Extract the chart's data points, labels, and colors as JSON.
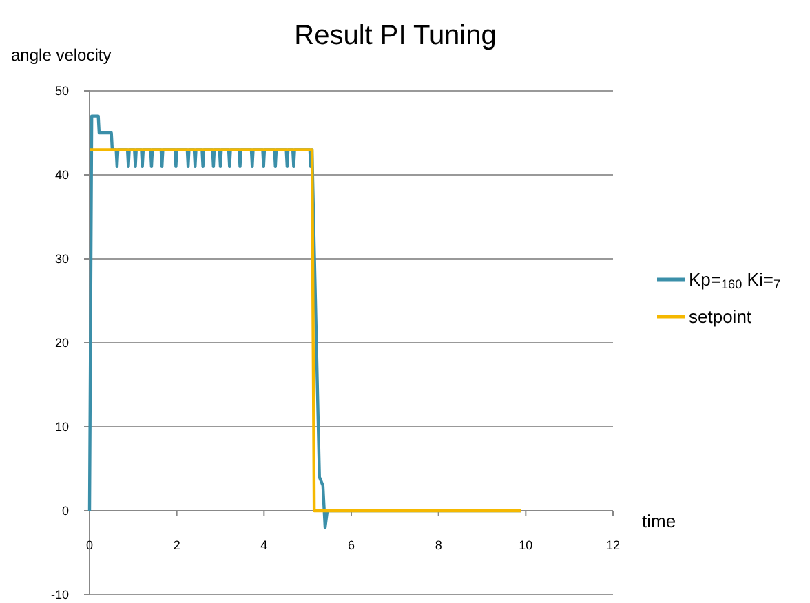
{
  "chart_data": {
    "type": "line",
    "title": "Result PI Tuning",
    "xlabel": "time",
    "ylabel": "angle velocity",
    "xlim": [
      0,
      12
    ],
    "xticks": [
      0,
      2,
      4,
      6,
      8,
      10,
      12
    ],
    "ylim": [
      -10,
      50
    ],
    "yticks": [
      -10,
      0,
      10,
      20,
      30,
      40,
      50
    ],
    "grid": "y",
    "legend": "right",
    "marker": "none",
    "line_style": "solid",
    "series": [
      {
        "name": "Kp=$_{160}$ Ki=$_{7}$",
        "color": "#3b8fa9",
        "x": [
          0,
          0.05,
          0.2,
          0.22,
          0.5,
          0.52,
          0.61,
          0.63,
          0.65,
          0.87,
          0.89,
          0.91,
          1.03,
          1.05,
          1.07,
          1.19,
          1.21,
          1.23,
          1.4,
          1.42,
          1.44,
          1.64,
          1.66,
          1.68,
          1.96,
          1.98,
          2.0,
          2.24,
          2.26,
          2.28,
          2.4,
          2.42,
          2.44,
          2.58,
          2.6,
          2.62,
          2.82,
          2.84,
          2.86,
          2.98,
          3.0,
          3.02,
          3.19,
          3.21,
          3.23,
          3.43,
          3.45,
          3.47,
          3.71,
          3.73,
          3.75,
          3.97,
          3.99,
          4.01,
          4.24,
          4.26,
          4.28,
          4.51,
          4.53,
          4.55,
          4.66,
          4.68,
          4.7,
          5.05,
          5.07,
          5.1,
          5.27,
          5.35,
          5.4,
          5.45,
          9.9
        ],
        "values": [
          0,
          47,
          47,
          45,
          45,
          43,
          43,
          41,
          43,
          43,
          41,
          43,
          43,
          41,
          43,
          43,
          41,
          43,
          43,
          41,
          43,
          43,
          41,
          43,
          43,
          41,
          43,
          43,
          41,
          43,
          43,
          41,
          43,
          43,
          41,
          43,
          43,
          41,
          43,
          43,
          41,
          43,
          43,
          41,
          43,
          43,
          41,
          43,
          43,
          41,
          43,
          43,
          41,
          43,
          43,
          41,
          43,
          43,
          41,
          43,
          43,
          41,
          43,
          43,
          41,
          43,
          4,
          3,
          -2,
          0,
          0
        ]
      },
      {
        "name": "setpoint",
        "color": "#f5b800",
        "x": [
          0,
          5.1,
          5.15,
          9.9
        ],
        "values": [
          43,
          43,
          0,
          0
        ]
      }
    ]
  }
}
